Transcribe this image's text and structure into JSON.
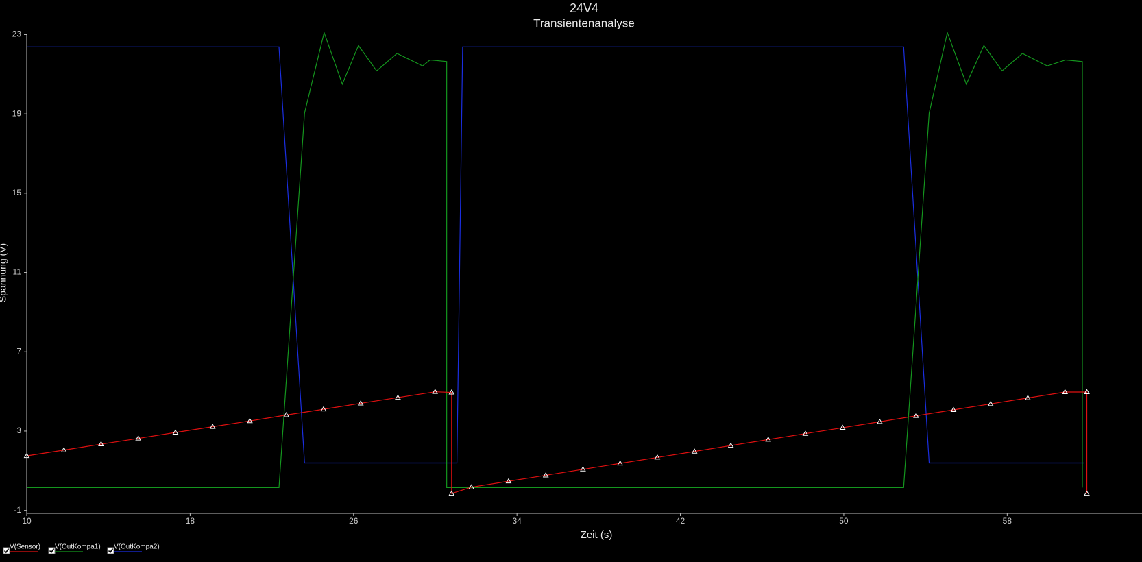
{
  "chart_data": {
    "type": "line",
    "title": "24V4",
    "subtitle": "Transientenanalyse",
    "x_label": "Zeit (s)",
    "y_label": "Spannung (V)",
    "xlim": [
      10,
      64.6
    ],
    "xticks": [
      10,
      18,
      26,
      34,
      42,
      50,
      58
    ],
    "ylim": [
      -1.15,
      23.05
    ],
    "yticks": [
      -1,
      3,
      7,
      11,
      15,
      19,
      23
    ],
    "grid": false,
    "legend": "bottom-left",
    "series": [
      {
        "name": "V(Sensor)",
        "color": "#e01010",
        "marker": "triangle",
        "x": [
          10,
          11.82,
          13.64,
          15.46,
          17.28,
          19.1,
          20.92,
          22.71,
          24.53,
          26.35,
          28.17,
          29.99,
          30.8,
          30.8,
          31.77,
          33.59,
          35.41,
          37.23,
          39.05,
          40.87,
          42.69,
          44.47,
          46.3,
          48.12,
          49.94,
          51.76,
          53.54,
          55.37,
          57.19,
          59.01,
          60.83,
          61.9,
          61.9
        ],
        "values": [
          1.75,
          2.04,
          2.34,
          2.63,
          2.93,
          3.22,
          3.51,
          3.81,
          4.1,
          4.4,
          4.69,
          4.98,
          4.95,
          -0.15,
          0.17,
          0.47,
          0.77,
          1.07,
          1.37,
          1.67,
          1.97,
          2.27,
          2.57,
          2.87,
          3.17,
          3.47,
          3.77,
          4.07,
          4.37,
          4.67,
          4.97,
          4.97,
          -0.15
        ]
      },
      {
        "name": "V(OutKompa1)",
        "color": "#14961e",
        "x": [
          10,
          22.35,
          23.6,
          24.56,
          25.45,
          26.24,
          27.13,
          28.13,
          29.38,
          29.74,
          30.56,
          30.56,
          52.93,
          54.18,
          55.07,
          56.0,
          56.86,
          57.75,
          58.75,
          59.96,
          60.86,
          61.68,
          61.68
        ],
        "values": [
          0.15,
          0.15,
          19.04,
          23.1,
          20.5,
          22.45,
          21.17,
          22.05,
          21.42,
          21.72,
          21.64,
          0.15,
          0.15,
          19.04,
          23.1,
          20.5,
          22.45,
          21.17,
          22.05,
          21.42,
          21.72,
          21.64,
          0.15
        ]
      },
      {
        "name": "V(OutKompa2)",
        "color": "#1a2ee0",
        "x": [
          10,
          22.35,
          23.6,
          31.06,
          31.34,
          52.93,
          54.18,
          61.78
        ],
        "values": [
          22.38,
          22.38,
          1.39,
          1.39,
          22.38,
          22.38,
          1.39,
          1.39
        ]
      }
    ]
  }
}
